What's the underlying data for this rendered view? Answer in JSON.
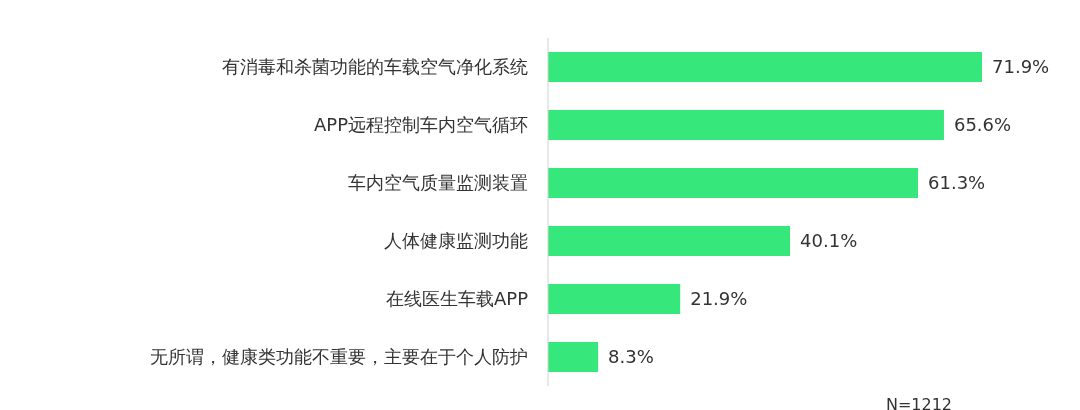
{
  "chart_data": {
    "type": "bar",
    "orientation": "horizontal",
    "value_labels": [
      "71.9%",
      "65.6%",
      "61.3%",
      "40.1%",
      "21.9%",
      "8.3%"
    ],
    "categories": [
      "有消毒和杀菌功能的车载空气净化系统",
      "APP远程控制车内空气循环",
      "车内空气质量监测装置",
      "人体健康监测功能",
      "在线医生车载APP",
      "无所谓，健康类功能不重要，主要在于个人防护"
    ],
    "values": [
      71.9,
      65.6,
      61.3,
      40.1,
      21.9,
      8.3
    ],
    "color": "#36e87b",
    "annotations": [
      "N=1212"
    ]
  }
}
